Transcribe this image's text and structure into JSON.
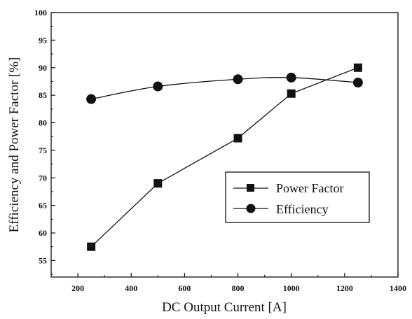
{
  "chart_data": {
    "type": "line",
    "title": "",
    "xlabel": "DC Output Current [A]",
    "ylabel": "Efficiency and Power Factor [%]",
    "xlim": [
      100,
      1400
    ],
    "ylim": [
      52,
      100
    ],
    "xticks": [
      200,
      400,
      600,
      800,
      1000,
      1200,
      1400
    ],
    "yticks": [
      55,
      60,
      65,
      70,
      75,
      80,
      85,
      90,
      95,
      100
    ],
    "grid": false,
    "legend_position": "lower-right",
    "series": [
      {
        "name": "Power Factor",
        "marker": "square",
        "x": [
          250,
          500,
          800,
          1000,
          1250
        ],
        "values": [
          57.5,
          69.0,
          77.2,
          85.3,
          90.0
        ]
      },
      {
        "name": "Efficiency",
        "marker": "circle",
        "smooth": true,
        "x": [
          250,
          500,
          800,
          1000,
          1250
        ],
        "values": [
          84.3,
          86.6,
          87.9,
          88.2,
          87.3
        ]
      }
    ],
    "colors": {
      "line": "#111111",
      "marker": "#111111",
      "background": "#ffffff"
    }
  }
}
